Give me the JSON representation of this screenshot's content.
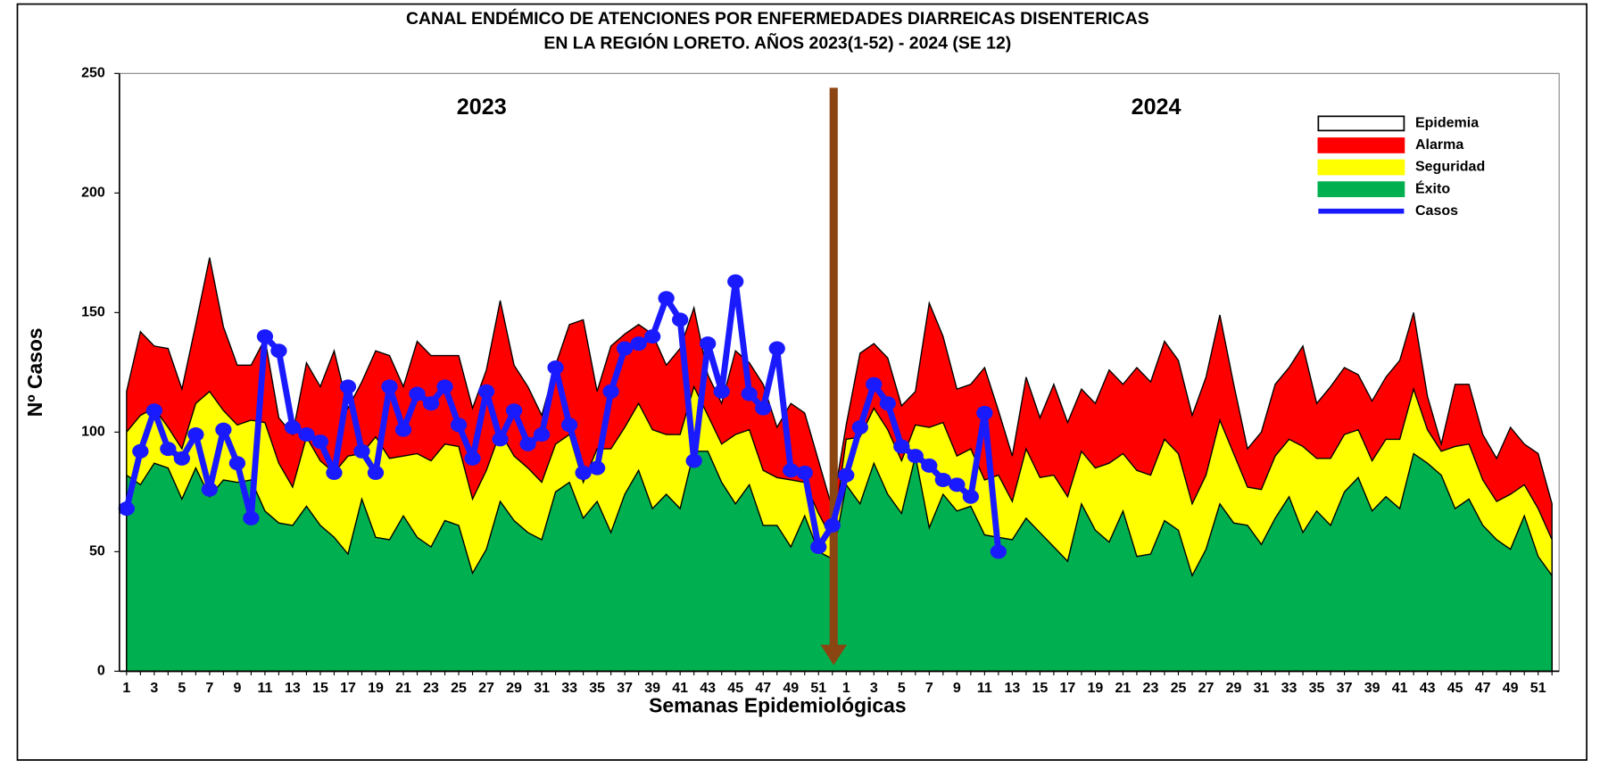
{
  "chart_data": {
    "type": "endemic-channel",
    "title": [
      "CANAL ENDÉMICO DE ATENCIONES POR ENFERMEDADES DIARREICAS DISENTERICAS",
      "EN LA REGIÓN LORETO.  AÑOS 2023(1-52) - 2024 (SE 12)"
    ],
    "x_label": "Semanas Epidemiológicas",
    "y_label": "Nº Casos",
    "annotations": [
      "2023",
      "2024"
    ],
    "legend": "upper right",
    "ylim": [
      0,
      250
    ],
    "yticks": [
      0,
      50,
      100,
      150,
      200,
      250
    ],
    "categories": [
      "1",
      null,
      "3",
      null,
      "5",
      null,
      "7",
      null,
      "9",
      null,
      "11",
      null,
      "13",
      null,
      "15",
      null,
      "17",
      null,
      "19",
      null,
      "21",
      null,
      "23",
      null,
      "25",
      null,
      "27",
      null,
      "29",
      null,
      "31",
      null,
      "33",
      null,
      "35",
      null,
      "37",
      null,
      "39",
      null,
      "41",
      null,
      "43",
      null,
      "45",
      null,
      "47",
      null,
      "49",
      null,
      "51",
      null,
      "1",
      null,
      "3",
      null,
      "5",
      null,
      "7",
      null,
      "9",
      null,
      "11",
      null,
      "13",
      null,
      "15",
      null,
      "17",
      null,
      "19",
      null,
      "21",
      null,
      "23",
      null,
      "25",
      null,
      "27",
      null,
      "29",
      null,
      "31",
      null,
      "33",
      null,
      "35",
      null,
      "37",
      null,
      "39",
      null,
      "41",
      null,
      "43",
      null,
      "45",
      null,
      "47",
      null,
      "49",
      null,
      "51",
      null
    ],
    "series": [
      {
        "name": "Epidemia",
        "color": "#ffffff"
      },
      {
        "name": "Alarma",
        "color": "#ff0000",
        "values": [
          117,
          142,
          136,
          135,
          118,
          145,
          173,
          144,
          128,
          128,
          139,
          106,
          99,
          129,
          119,
          134,
          110,
          121,
          134,
          132,
          119,
          138,
          132,
          132,
          132,
          110,
          126,
          155,
          128,
          119,
          107,
          128,
          145,
          147,
          117,
          136,
          141,
          145,
          141,
          128,
          135,
          152,
          124,
          112,
          134,
          129,
          120,
          102,
          112,
          108,
          88,
          68,
          103,
          133,
          137,
          131,
          111,
          117,
          154,
          140,
          118,
          120,
          127,
          109,
          90,
          123,
          106,
          120,
          104,
          118,
          112,
          126,
          120,
          127,
          121,
          138,
          130,
          107,
          123,
          149,
          120,
          93,
          100,
          120,
          127,
          136,
          112,
          119,
          127,
          124,
          113,
          123,
          130,
          150,
          115,
          95,
          120,
          120,
          99,
          89,
          102,
          95,
          91,
          70
        ]
      },
      {
        "name": "Seguridad",
        "color": "#ffff00",
        "values": [
          100,
          107,
          110,
          102,
          93,
          112,
          117,
          109,
          103,
          105,
          104,
          87,
          77,
          98,
          88,
          83,
          90,
          91,
          98,
          89,
          90,
          91,
          88,
          95,
          94,
          72,
          84,
          100,
          90,
          85,
          79,
          95,
          99,
          79,
          93,
          93,
          102,
          112,
          101,
          99,
          99,
          119,
          107,
          95,
          99,
          101,
          84,
          81,
          80,
          79,
          66,
          55,
          97,
          98,
          110,
          101,
          88,
          103,
          102,
          104,
          90,
          93,
          80,
          82,
          71,
          93,
          81,
          82,
          73,
          92,
          85,
          87,
          91,
          84,
          82,
          97,
          91,
          70,
          82,
          105,
          91,
          77,
          76,
          90,
          97,
          94,
          89,
          89,
          99,
          101,
          88,
          97,
          97,
          118,
          101,
          92,
          94,
          95,
          80,
          71,
          74,
          78,
          68,
          55
        ]
      },
      {
        "name": "Éxito",
        "color": "#00b050",
        "values": [
          82,
          78,
          87,
          85,
          72,
          85,
          73,
          80,
          79,
          80,
          67,
          62,
          61,
          69,
          61,
          56,
          49,
          72,
          56,
          55,
          65,
          56,
          52,
          63,
          61,
          41,
          51,
          71,
          63,
          58,
          55,
          75,
          79,
          64,
          71,
          58,
          74,
          84,
          68,
          74,
          68,
          92,
          92,
          79,
          70,
          78,
          61,
          61,
          52,
          65,
          50,
          47,
          78,
          70,
          87,
          74,
          66,
          90,
          60,
          74,
          67,
          69,
          57,
          56,
          55,
          64,
          58,
          52,
          46,
          70,
          59,
          54,
          67,
          48,
          49,
          63,
          59,
          40,
          51,
          70,
          62,
          61,
          53,
          64,
          73,
          58,
          67,
          61,
          75,
          81,
          67,
          73,
          68,
          91,
          87,
          82,
          68,
          72,
          61,
          55,
          51,
          65,
          48,
          40
        ]
      },
      {
        "name": "Casos",
        "color": "#1a1aff",
        "values": [
          68,
          92,
          109,
          93,
          89,
          99,
          76,
          101,
          87,
          64,
          140,
          134,
          102,
          99,
          96,
          83,
          119,
          92,
          83,
          119,
          101,
          116,
          112,
          119,
          103,
          89,
          117,
          97,
          109,
          95,
          99,
          127,
          103,
          83,
          85,
          117,
          135,
          137,
          140,
          156,
          147,
          88,
          137,
          117,
          163,
          116,
          110,
          135,
          84,
          83,
          52,
          61,
          82,
          102,
          120,
          112,
          94,
          90,
          86,
          80,
          78,
          73,
          108,
          50,
          null,
          null,
          null,
          null,
          null,
          null,
          null,
          null,
          null,
          null,
          null,
          null,
          null,
          null,
          null,
          null,
          null,
          null,
          null,
          null,
          null,
          null,
          null,
          null,
          null,
          null,
          null,
          null,
          null,
          null,
          null,
          null,
          null,
          null,
          null,
          null,
          null,
          null,
          null,
          null
        ]
      }
    ]
  }
}
